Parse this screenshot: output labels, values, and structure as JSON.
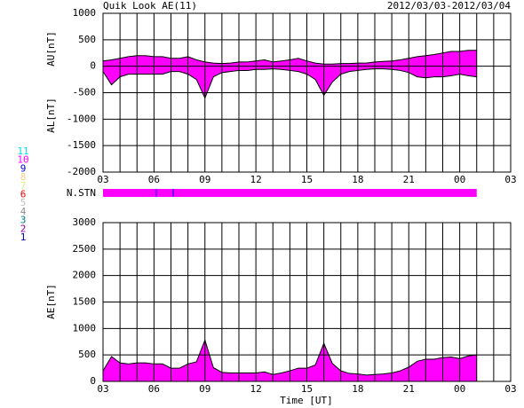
{
  "title": "Quik Look AE(11)",
  "date_range": "2012/03/03-2012/03/04",
  "n_stn_label": "N.STN",
  "station_legend": [
    {
      "label": "11",
      "color": "#00e0e0"
    },
    {
      "label": "10",
      "color": "#ff00ff"
    },
    {
      "label": "9",
      "color": "#0000ff"
    },
    {
      "label": "8",
      "color": "#f0d080"
    },
    {
      "label": "7",
      "color": "#e0f080"
    },
    {
      "label": "6",
      "color": "#ff0000"
    },
    {
      "label": "5",
      "color": "#c0c0c0"
    },
    {
      "label": "4",
      "color": "#909090"
    },
    {
      "label": "3",
      "color": "#008080"
    },
    {
      "label": "2",
      "color": "#a000a0"
    },
    {
      "label": "1",
      "color": "#0000c0"
    }
  ],
  "chart_data": [
    {
      "type": "area",
      "ylabel_upper": "AU[nT]",
      "ylabel_lower": "AL[nT]",
      "grid": true,
      "x": [
        3,
        3.5,
        4,
        4.5,
        5,
        5.5,
        6,
        6.5,
        7,
        7.5,
        8,
        8.5,
        9,
        9.5,
        10,
        10.5,
        11,
        11.5,
        12,
        12.5,
        13,
        13.5,
        14,
        14.5,
        15,
        15.5,
        16,
        16.5,
        17,
        17.5,
        18,
        18.5,
        19,
        19.5,
        20,
        20.5,
        21,
        21.5,
        22,
        22.5,
        23,
        23.5,
        24,
        24.5,
        25
      ],
      "series": [
        {
          "color": "#ff00ff",
          "values": [
            100,
            120,
            150,
            180,
            200,
            200,
            180,
            180,
            150,
            150,
            180,
            120,
            80,
            60,
            50,
            60,
            80,
            80,
            100,
            120,
            80,
            100,
            120,
            150,
            100,
            60,
            40,
            40,
            50,
            50,
            60,
            60,
            80,
            90,
            100,
            120,
            150,
            180,
            200,
            220,
            250,
            280,
            280,
            300,
            300
          ]
        },
        {
          "color": "#ff00ff",
          "values": [
            -100,
            -350,
            -200,
            -150,
            -150,
            -150,
            -150,
            -150,
            -100,
            -100,
            -150,
            -250,
            -600,
            -200,
            -120,
            -100,
            -80,
            -80,
            -60,
            -60,
            -50,
            -60,
            -80,
            -100,
            -150,
            -250,
            -550,
            -300,
            -150,
            -100,
            -80,
            -60,
            -50,
            -50,
            -60,
            -80,
            -120,
            -200,
            -220,
            -200,
            -200,
            -180,
            -150,
            -180,
            -200
          ]
        }
      ],
      "xlim": [
        3,
        27
      ],
      "xticks": [
        {
          "value": 3,
          "label": "03"
        },
        {
          "value": 6,
          "label": "06"
        },
        {
          "value": 9,
          "label": "09"
        },
        12,
        15,
        18,
        21,
        {
          "value": 24,
          "label": "00"
        },
        {
          "value": 27,
          "label": "03"
        }
      ],
      "ylim": [
        -2000,
        1000
      ],
      "yticks": [
        -2000,
        -1500,
        -1000,
        -500,
        0,
        500,
        1000
      ]
    },
    {
      "type": "area",
      "ylabel": "AE[nT]",
      "xlabel": "Time [UT]",
      "grid": true,
      "x": [
        3,
        3.5,
        4,
        4.5,
        5,
        5.5,
        6,
        6.5,
        7,
        7.5,
        8,
        8.5,
        9,
        9.5,
        10,
        10.5,
        11,
        11.5,
        12,
        12.5,
        13,
        13.5,
        14,
        14.5,
        15,
        15.5,
        16,
        16.5,
        17,
        17.5,
        18,
        18.5,
        19,
        19.5,
        20,
        20.5,
        21,
        21.5,
        22,
        22.5,
        23,
        23.5,
        24,
        24.5,
        25
      ],
      "series": [
        {
          "color": "#ff00ff",
          "values": [
            200,
            470,
            350,
            330,
            350,
            350,
            330,
            330,
            250,
            250,
            330,
            370,
            780,
            260,
            170,
            160,
            160,
            160,
            160,
            180,
            130,
            160,
            200,
            250,
            250,
            310,
            720,
            340,
            200,
            150,
            140,
            120,
            130,
            140,
            160,
            200,
            270,
            380,
            420,
            420,
            450,
            460,
            430,
            480,
            500
          ]
        }
      ],
      "xlim": [
        3,
        27
      ],
      "xticks": [
        {
          "value": 3,
          "label": "03"
        },
        {
          "value": 6,
          "label": "06"
        },
        {
          "value": 9,
          "label": "09"
        },
        12,
        15,
        18,
        21,
        {
          "value": 24,
          "label": "00"
        },
        {
          "value": 27,
          "label": "03"
        }
      ],
      "ylim": [
        0,
        3000
      ],
      "yticks": [
        0,
        500,
        1000,
        1500,
        2000,
        2500,
        3000
      ]
    }
  ]
}
